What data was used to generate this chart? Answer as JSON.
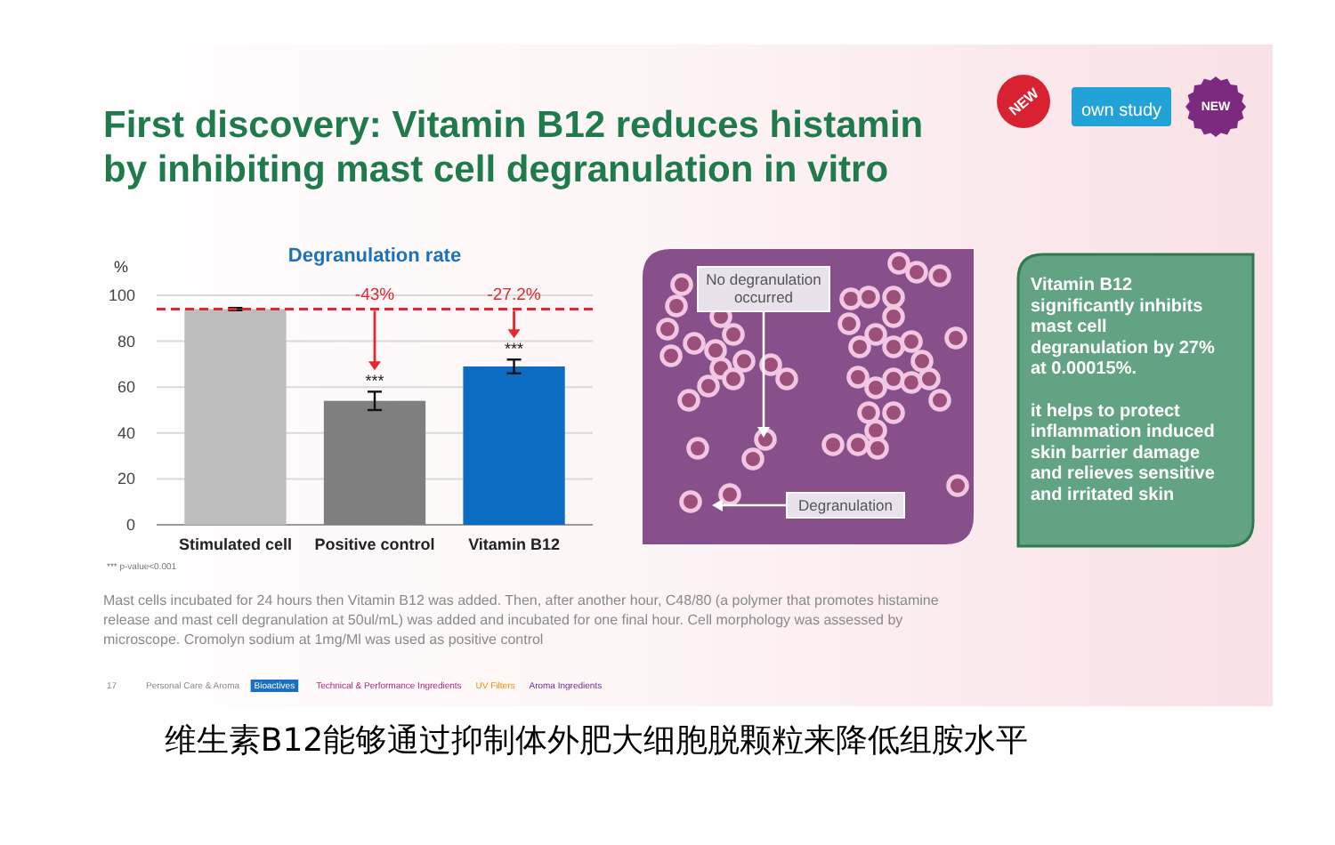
{
  "chart_data": {
    "type": "bar",
    "title": "First discovery: Vitamin B12 reduces histamin by inhibiting mast cell degranulation in vitro",
    "subtitle": "Degranulation rate",
    "ylabel": "%",
    "categories": [
      "Stimulated cell",
      "Positive control",
      "Vitamin B12"
    ],
    "values": [
      94,
      54,
      69
    ],
    "colors": [
      "#bdbdbd",
      "#7f7f7f",
      "#0b6cc2"
    ],
    "errors": [
      0.5,
      4,
      3
    ],
    "ylim": [
      0,
      100
    ],
    "yticks": [
      0,
      20,
      40,
      60,
      80,
      100
    ],
    "grid": "y",
    "ref_lines": [
      {
        "axis": "y",
        "value": 94,
        "color": "#e3262f",
        "line_style": "dashed"
      }
    ],
    "annotations": [
      {
        "text": "***",
        "x": "Positive control",
        "y": 58
      },
      {
        "text": "***",
        "x": "Vitamin B12",
        "y": 72
      },
      "-43%",
      "-27.2%",
      "*** p-value<0.001",
      "No degranulation occurred",
      "Degranulation",
      "Vitamin B12 significantly inhibits mast cell degranulation by 27% at 0.00015%.",
      "it helps to protect inflammation induced skin barrier damage and relieves sensitive and irritated skin",
      "Mast cells incubated for 24 hours then Vitamin B12 was added. Then, after another hour, C48/80 (a polymer that promotes histamine release and mast cell degranulation at 50ul/mL) was added and incubated for one final hour. Cell morphology was assessed by microscope. Cromolyn sodium at 1mg/Ml was used as positive control",
      "17",
      "Personal Care & Aroma",
      "Bioactives",
      "Technical & Performance Ingredients",
      "UV Filters",
      "Aroma Ingredients",
      "NEW",
      "own study",
      "NEW",
      "维生素B12能够通过抑制体外肥大细胞脱颗粒来降低组胺水平"
    ]
  }
}
